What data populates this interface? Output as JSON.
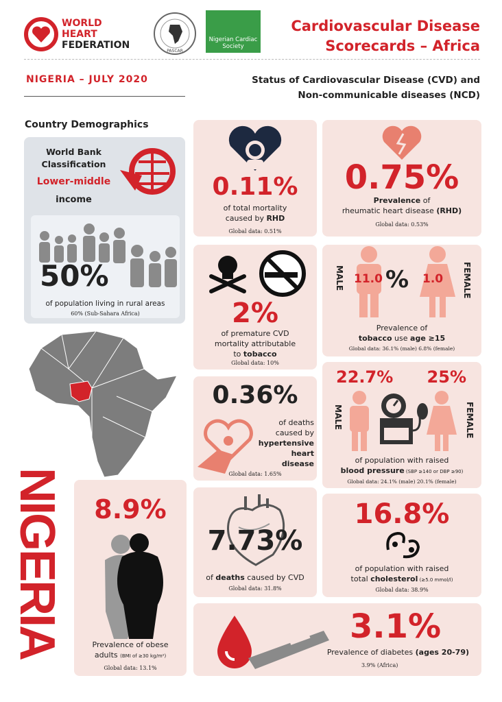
{
  "header": {
    "org": [
      "WORLD",
      "HEART",
      "FEDERATION"
    ],
    "pascar": "PASCAR",
    "ncs": "Nigerian Cardiac Society",
    "title": [
      "Cardiovascular Disease",
      "Scorecards – Africa"
    ],
    "country_date": "NIGERIA – JULY 2020",
    "subtitle": [
      "Status of Cardiovascular Disease (CVD) and",
      "Non-communicable diseases (NCD)"
    ]
  },
  "demographics": {
    "heading": "Country Demographics",
    "classification_label": [
      "World Bank",
      "Classification"
    ],
    "classification": "Lower-middle",
    "income": "income",
    "rural_value": "50%",
    "rural_caption": "of population living in rural areas",
    "rural_reference": "60% (Sub-Sahara Africa)"
  },
  "country_name": "NIGERIA",
  "obesity": {
    "value": "8.9%",
    "caption": [
      "Prevalence of obese",
      "adults "
    ],
    "note": "(BMI of ≥30 kg/m²)",
    "global": "Global data: 13.1%"
  },
  "rhd_mortality": {
    "value": "0.11%",
    "caption": [
      "of total mortality",
      "caused by ",
      "RHD"
    ],
    "global": "Global data: 0.51%"
  },
  "rhd_prevalence": {
    "value": "0.75%",
    "caption": [
      "Prevalence",
      " of",
      "rheumatic heart disease ",
      "(RHD)"
    ],
    "global": "Global data: 0.53%"
  },
  "tobacco_mortality": {
    "value": "2%",
    "caption": [
      "of premature CVD",
      "mortality attributable",
      "to ",
      "tobacco"
    ],
    "global": "Global data: 10%"
  },
  "tobacco_use": {
    "male_label": "MALE",
    "female_label": "FEMALE",
    "male_value": "11.0",
    "percent": "%",
    "female_value": "1.0",
    "caption": [
      "Prevalence of",
      "tobacco",
      " use ",
      "age ≥15"
    ],
    "global": "Global data: 36.1% (male) 6.8% (female)"
  },
  "hypertensive": {
    "value": "0.36%",
    "caption": [
      "of deaths",
      "caused by",
      "hypertensive",
      "heart disease"
    ],
    "global": "Global data: 1.65%"
  },
  "blood_pressure": {
    "male_value": "22.7%",
    "female_value": "25%",
    "male_label": "MALE",
    "female_label": "FEMALE",
    "caption": [
      "of population with raised",
      "blood pressure",
      " (SBP ≥140 or DBP ≥90)"
    ],
    "global": "Global data: 24.1% (male) 20.1% (female)"
  },
  "cvd_deaths": {
    "value": "7.73%",
    "caption": [
      "of ",
      "deaths",
      " caused by CVD"
    ],
    "global": "Global data: 31.8%"
  },
  "cholesterol": {
    "value": "16.8%",
    "caption": [
      "of population with raised",
      "total ",
      "cholesterol",
      " (≥5.0 mmol/l)"
    ],
    "global": "Global data: 38.9%"
  },
  "diabetes": {
    "value": "3.1%",
    "caption": [
      "Prevalence of diabetes ",
      "(ages 20-79)"
    ],
    "reference": "3.9% (Africa)"
  }
}
